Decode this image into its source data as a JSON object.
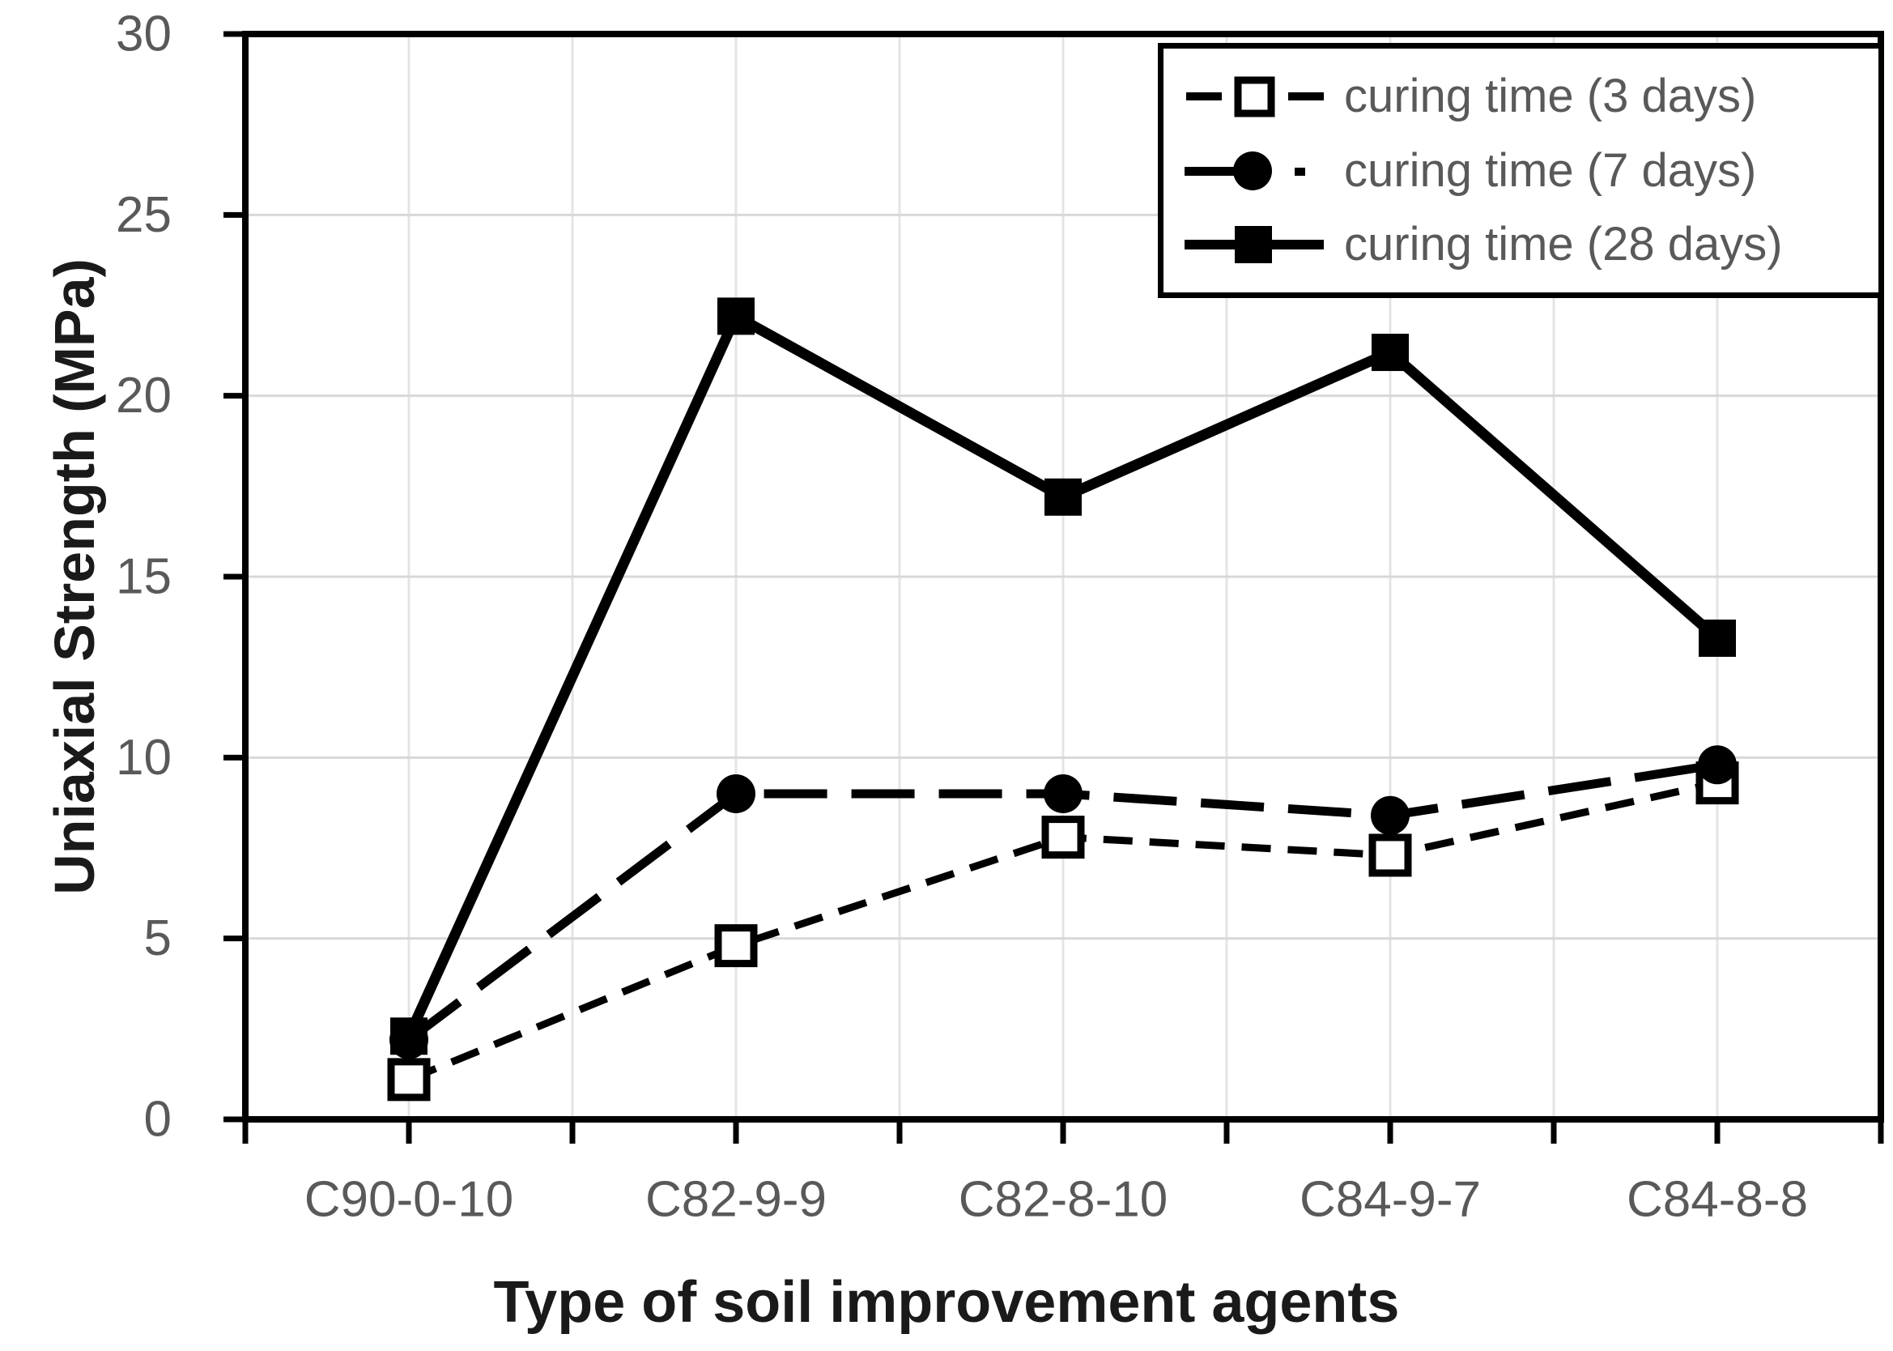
{
  "chart_data": {
    "type": "line",
    "title": "",
    "xlabel": "Type of soil improvement agents",
    "ylabel": "Uniaxial Strength (MPa)",
    "categories": [
      "C90-0-10",
      "C82-9-9",
      "C82-8-10",
      "C84-9-7",
      "C84-8-8"
    ],
    "series": [
      {
        "name": "curing time (3 days)",
        "values": [
          1.1,
          4.8,
          7.8,
          7.3,
          9.3
        ],
        "line_style": "short-dash",
        "marker": "open-square"
      },
      {
        "name": "curing time (7 days)",
        "values": [
          2.2,
          9.0,
          9.0,
          8.4,
          9.8
        ],
        "line_style": "long-dash",
        "marker": "filled-circle"
      },
      {
        "name": "curing time (28 days)",
        "values": [
          2.3,
          22.2,
          17.2,
          21.2,
          13.3
        ],
        "line_style": "solid",
        "marker": "filled-square"
      }
    ],
    "ylim": [
      0,
      30
    ],
    "yticks": [
      0,
      5,
      10,
      15,
      20,
      25,
      30
    ],
    "grid": true,
    "legend_position": "top-right"
  },
  "colors": {
    "series": "#000000",
    "axis": "#000000",
    "tick_labels": "#595959",
    "axis_titles": "#1a1a1a",
    "gridline_h": "#d8d8d8",
    "gridline_v": "#e4e4e4",
    "background": "#ffffff"
  }
}
